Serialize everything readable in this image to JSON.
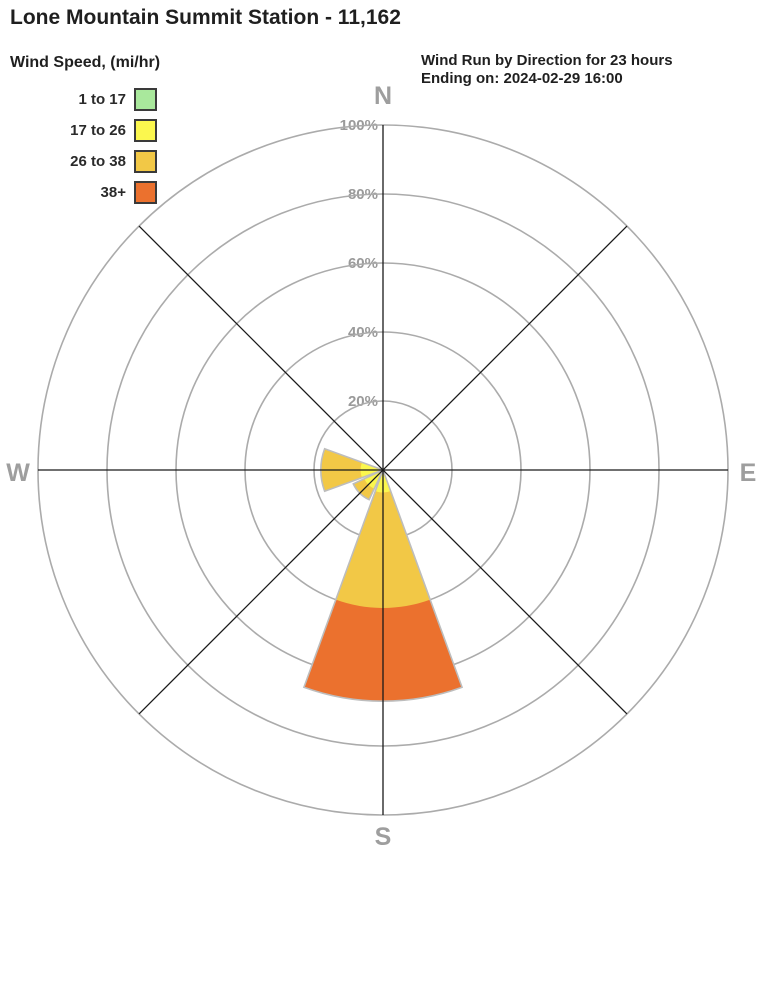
{
  "header": {
    "title": "Lone Mountain Summit Station - 11,162"
  },
  "legend": {
    "title": "Wind Speed, (mi/hr)"
  },
  "chart_data": {
    "type": "wind_rose",
    "title": "Wind Run by Direction for 23 hours",
    "subtitle": "Ending on: 2024-02-29 16:00",
    "radial_unit": "%",
    "radial_ticks": [
      20,
      40,
      60,
      80,
      100
    ],
    "radial_max": 100,
    "grid": "polar, 5 rings, 8 spokes",
    "bins": [
      {
        "label": "1 to 17",
        "color": "#A9E89C"
      },
      {
        "label": "17 to 26",
        "color": "#FBF74E"
      },
      {
        "label": "26 to 38",
        "color": "#F2C846"
      },
      {
        "label": "38+",
        "color": "#EB712E"
      }
    ],
    "compass": [
      {
        "label": "N",
        "azimuth_deg": 0
      },
      {
        "label": "E",
        "azimuth_deg": 90
      },
      {
        "label": "S",
        "azimuth_deg": 180
      },
      {
        "label": "W",
        "azimuth_deg": 270
      }
    ],
    "spoke_azimuths_deg": [
      0,
      45,
      90,
      135
    ],
    "petal_half_angle_deg": 20,
    "petals": [
      {
        "direction": "S",
        "azimuth_deg": 180,
        "segments": [
          {
            "bin": "17 to 26",
            "from_pct": 0,
            "to_pct": 6.5
          },
          {
            "bin": "26 to 38",
            "from_pct": 6.5,
            "to_pct": 40
          },
          {
            "bin": "38+",
            "from_pct": 40,
            "to_pct": 67
          }
        ]
      },
      {
        "direction": "SW",
        "azimuth_deg": 225,
        "segments": [
          {
            "bin": "17 to 26",
            "from_pct": 0,
            "to_pct": 6
          },
          {
            "bin": "26 to 38",
            "from_pct": 6,
            "to_pct": 9.5
          }
        ]
      },
      {
        "direction": "W",
        "azimuth_deg": 270,
        "segments": [
          {
            "bin": "17 to 26",
            "from_pct": 0,
            "to_pct": 6.5
          },
          {
            "bin": "26 to 38",
            "from_pct": 6.5,
            "to_pct": 18
          }
        ]
      }
    ],
    "colors": {
      "grid_ring": "#ABABAB",
      "axis_line": "#1A1A1A",
      "tick_text": "#9A9A9A",
      "compass_text": "#9E9E9E",
      "petal_border": "#BDBDBD"
    }
  }
}
